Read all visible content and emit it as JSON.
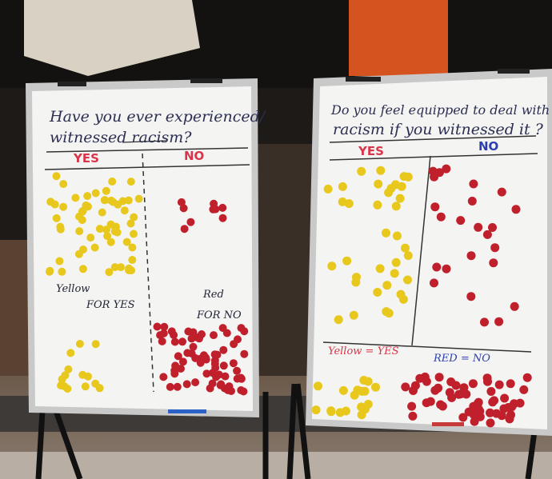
{
  "boards": [
    {
      "question_line1": "Have you ever experienced/",
      "question_line2": "witnessed racism?",
      "yes_header": "YES",
      "no_header": "NO",
      "yes_legend_1": "Yellow",
      "yes_legend_2": "FOR YES",
      "no_legend_1": "Red",
      "no_legend_2": "FOR NO"
    },
    {
      "question_line1": "Do you feel equipped to deal with",
      "question_line2": "racism if you witnessed it ?",
      "yes_header": "YES",
      "no_header": "NO",
      "yes_legend": "Yellow = YES",
      "no_legend": "RED = NO"
    }
  ]
}
